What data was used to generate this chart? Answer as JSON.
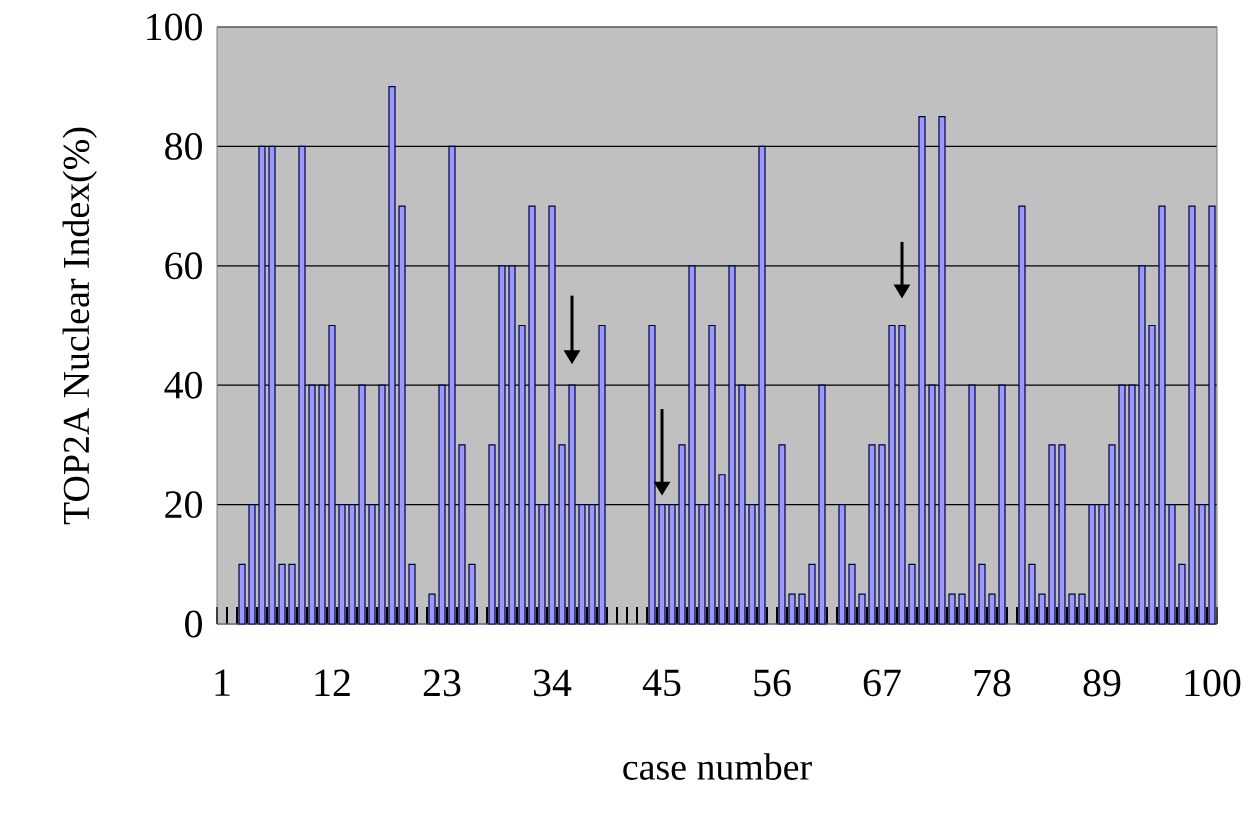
{
  "chart_data": {
    "type": "bar",
    "xlabel": "case number",
    "ylabel": "TOP2A Nuclear Index(%)",
    "categories": [
      "1",
      null,
      null,
      null,
      null,
      null,
      null,
      null,
      null,
      null,
      null,
      "12",
      null,
      null,
      null,
      null,
      null,
      null,
      null,
      null,
      null,
      null,
      "23",
      null,
      null,
      null,
      null,
      null,
      null,
      null,
      null,
      null,
      null,
      "34",
      null,
      null,
      null,
      null,
      null,
      null,
      null,
      null,
      null,
      null,
      "45",
      null,
      null,
      null,
      null,
      null,
      null,
      null,
      null,
      null,
      null,
      "56",
      null,
      null,
      null,
      null,
      null,
      null,
      null,
      null,
      null,
      null,
      "67",
      null,
      null,
      null,
      null,
      null,
      null,
      null,
      null,
      null,
      null,
      "78",
      null,
      null,
      null,
      null,
      null,
      null,
      null,
      null,
      null,
      null,
      "89",
      null,
      null,
      null,
      null,
      null,
      null,
      null,
      null,
      null,
      null,
      "100"
    ],
    "values": [
      0,
      0,
      10,
      20,
      80,
      80,
      10,
      10,
      80,
      40,
      40,
      50,
      20,
      20,
      40,
      20,
      40,
      90,
      70,
      10,
      0,
      5,
      40,
      80,
      30,
      10,
      0,
      30,
      60,
      60,
      50,
      70,
      20,
      70,
      30,
      40,
      20,
      20,
      50,
      0,
      0,
      0,
      0,
      50,
      20,
      20,
      30,
      60,
      20,
      50,
      25,
      60,
      40,
      20,
      80,
      0,
      30,
      5,
      5,
      10,
      40,
      0,
      20,
      10,
      5,
      30,
      30,
      50,
      50,
      10,
      85,
      40,
      85,
      5,
      5,
      40,
      10,
      5,
      40,
      0,
      70,
      10,
      5,
      30,
      30,
      5,
      5,
      20,
      20,
      30,
      40,
      40,
      60,
      50,
      70,
      20,
      10,
      70,
      20,
      70
    ],
    "color": "#9999ff",
    "ylim": [
      0,
      100
    ],
    "yticks": [
      0,
      20,
      40,
      60,
      80,
      100
    ],
    "grid": "y"
  }
}
